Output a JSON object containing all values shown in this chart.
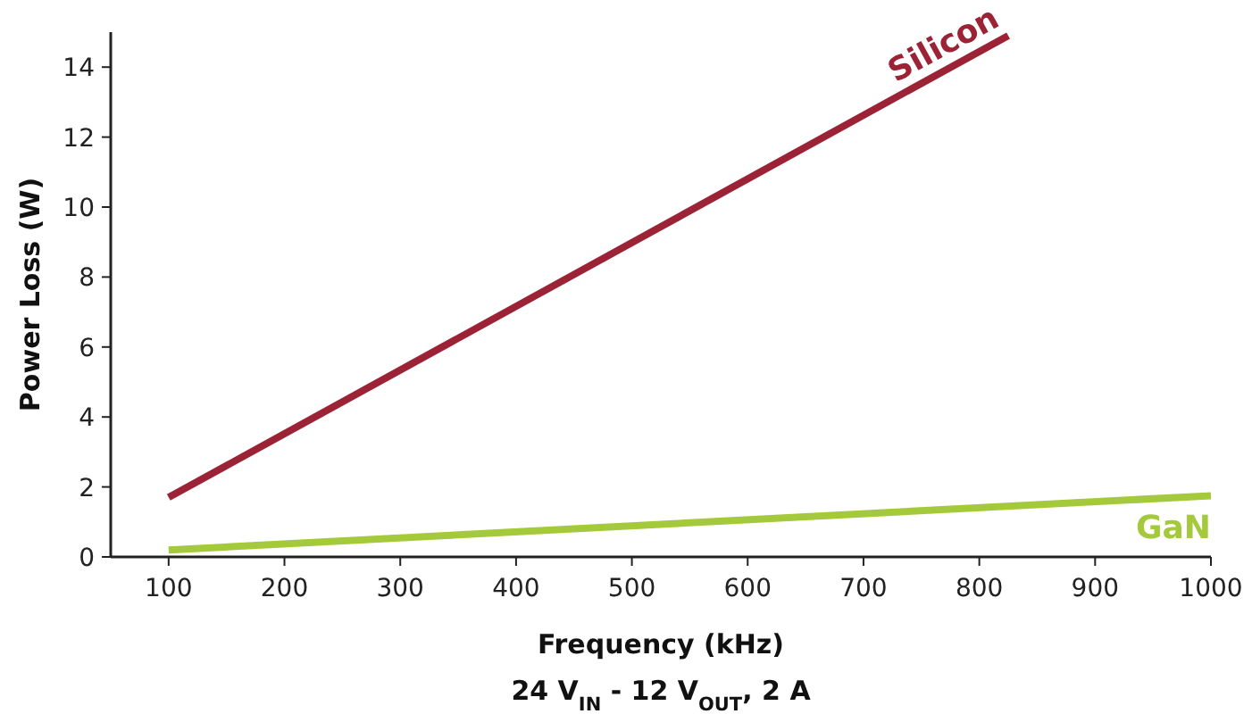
{
  "chart_data": {
    "type": "line",
    "xlabel": "Frequency (kHz)",
    "ylabel": "Power Loss (W)",
    "annotations": [
      "24 V$_{IN}$ - 12 V$_{OUT}$, 2 A"
    ],
    "xlim": [
      50,
      1000
    ],
    "xticks": [
      100,
      200,
      300,
      400,
      500,
      600,
      700,
      800,
      900,
      1000
    ],
    "ylim": [
      0,
      15
    ],
    "yticks": [
      0,
      2,
      4,
      6,
      8,
      10,
      12,
      14
    ],
    "grid": false,
    "marker": "none",
    "line_style": "solid",
    "series": [
      {
        "name": "Silicon",
        "color": "#9b2335",
        "x": [
          100,
          825
        ],
        "values": [
          1.7,
          14.9
        ]
      },
      {
        "name": "GaN",
        "color": "#a4c93a",
        "x": [
          100,
          1000
        ],
        "values": [
          0.2,
          1.75
        ]
      }
    ]
  }
}
